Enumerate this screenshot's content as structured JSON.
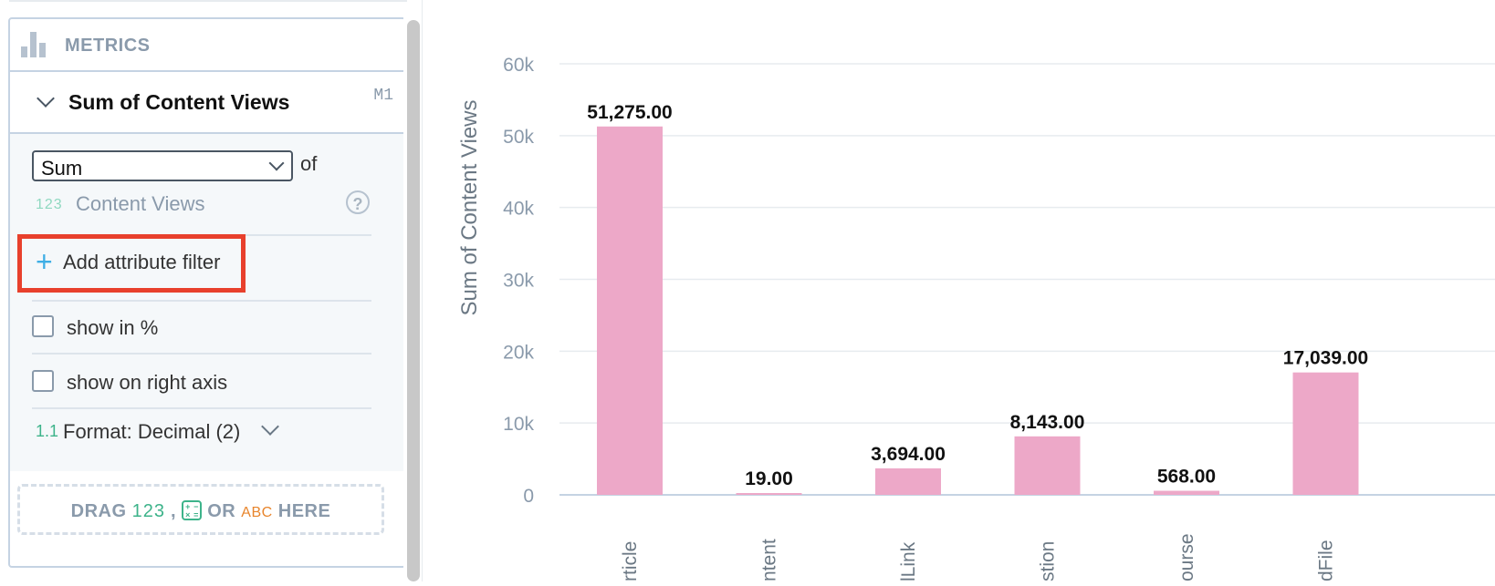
{
  "metrics_panel": {
    "title": "METRICS",
    "metric": {
      "title": "Sum of Content Views",
      "id": "M1",
      "aggregation": "Sum",
      "of_label": "of",
      "fact_glyph": "123",
      "fact_name": "Content Views",
      "help_icon": "?",
      "add_filter_label": "Add attribute filter",
      "show_percent_label": "show in %",
      "show_right_axis_label": "show on right axis",
      "format_glyph": "1.1",
      "format_label": "Format: Decimal (2)"
    },
    "drop_zone": {
      "drag": "DRAG",
      "num_glyph": "123",
      "comma": ",",
      "or": "OR",
      "abc_glyph": "ABC",
      "here": "HERE"
    }
  },
  "colors": {
    "bar": "#eda8c8",
    "highlight": "#e8402c",
    "accent": "#3eaee5"
  },
  "chart_data": {
    "type": "bar",
    "ylabel": "Sum of Content Views",
    "ylim": [
      0,
      60000
    ],
    "yticks": [
      "0",
      "10k",
      "20k",
      "30k",
      "40k",
      "50k",
      "60k"
    ],
    "categories": [
      "rticle",
      "ntent",
      "lLink",
      "stion",
      "ourse",
      "dFile"
    ],
    "values": [
      51275,
      19,
      3694,
      8143,
      568,
      17039
    ],
    "data_labels": [
      "51,275.00",
      "19.00",
      "3,694.00",
      "8,143.00",
      "568.00",
      "17,039.00"
    ],
    "grid": true
  }
}
